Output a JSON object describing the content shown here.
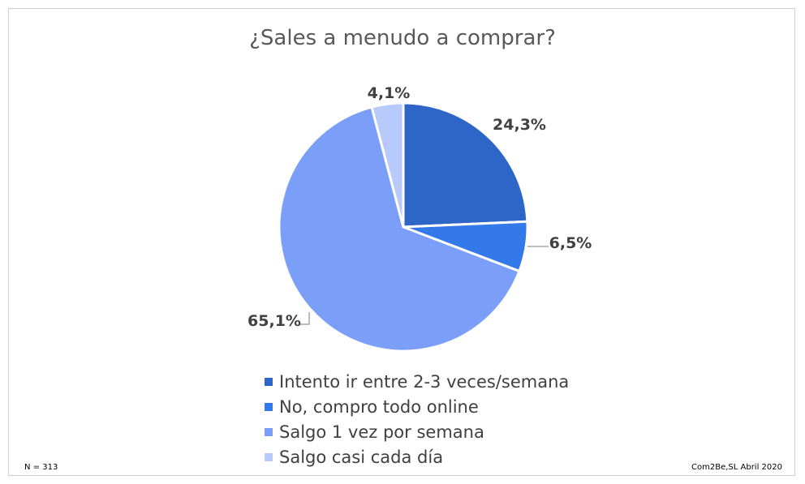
{
  "chart_data": {
    "type": "pie",
    "title": "¿Sales a menudo a comprar?",
    "slices": [
      {
        "label": "Intento ir entre 2-3 veces/semana",
        "value": 24.3,
        "display": "24,3%",
        "color": "#2e66c8"
      },
      {
        "label": "No, compro todo online",
        "value": 6.5,
        "display": "6,5%",
        "color": "#3479ea"
      },
      {
        "label": "Salgo 1 vez por semana",
        "value": 65.1,
        "display": "65,1%",
        "color": "#7b9ff8"
      },
      {
        "label": "Salgo casi cada día",
        "value": 4.1,
        "display": "4,1%",
        "color": "#b8c9fb"
      }
    ],
    "legend": "bottom"
  },
  "footer": {
    "sample": "N = 313",
    "source": "Com2Be,SL Abril 2020"
  }
}
